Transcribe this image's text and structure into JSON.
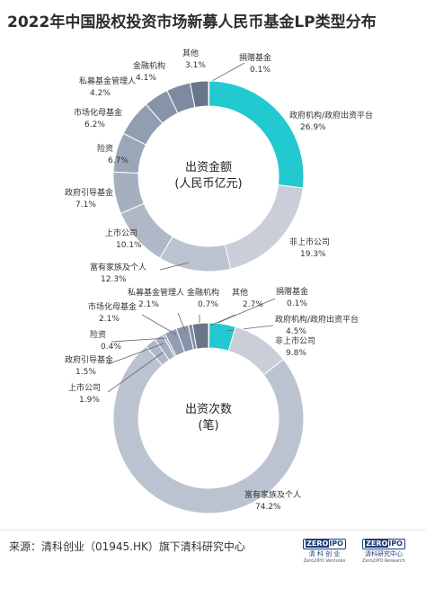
{
  "title": "2022年中国股权投资市场新募人民币基金LP类型分布",
  "source": "来源：清科创业（01945.HK）旗下清科研究中心",
  "logos": [
    {
      "mark_a": "ZERO",
      "mark_b": "IPO",
      "cn": "清 科 创 业",
      "en": "Zero2IPO Ventures"
    },
    {
      "mark_a": "ZERO",
      "mark_b": "IPO",
      "cn": "清科研究中心",
      "en": "Zero2IPO Research"
    }
  ],
  "colors": {
    "highlight": "#22c9d0",
    "slate": [
      "#69768a",
      "#738096",
      "#7d8aa0",
      "#8793a9",
      "#919db1",
      "#9ba6b9",
      "#a5afc0",
      "#b0b8c7",
      "#bcc3d0",
      "#c9ced8"
    ]
  },
  "chart_data": [
    {
      "type": "pie",
      "donut": true,
      "center_label": [
        "出资金额",
        "(人民币亿元)"
      ],
      "start_angle_deg": 0,
      "slices": [
        {
          "label": "捐赠基金",
          "value_text": "0.1%",
          "value": 0.1,
          "color": "#22c9d0"
        },
        {
          "label": "政府机构/政府出资平台",
          "value_text": "26.9%",
          "value": 26.9,
          "color": "#22c9d0"
        },
        {
          "label": "非上市公司",
          "value_text": "19.3%",
          "value": 19.3,
          "color": "#c9ced8"
        },
        {
          "label": "富有家族及个人",
          "value_text": "12.3%",
          "value": 12.3,
          "color": "#bcc3d0"
        },
        {
          "label": "上市公司",
          "value_text": "10.1%",
          "value": 10.1,
          "color": "#b0b8c7"
        },
        {
          "label": "政府引导基金",
          "value_text": "7.1%",
          "value": 7.1,
          "color": "#a5afc0"
        },
        {
          "label": "险资",
          "value_text": "6.7%",
          "value": 6.7,
          "color": "#9ba6b9"
        },
        {
          "label": "市场化母基金",
          "value_text": "6.2%",
          "value": 6.2,
          "color": "#919db1"
        },
        {
          "label": "私募基金管理人",
          "value_text": "4.2%",
          "value": 4.2,
          "color": "#8793a9"
        },
        {
          "label": "金融机构",
          "value_text": "4.1%",
          "value": 4.1,
          "color": "#7d8aa0"
        },
        {
          "label": "其他",
          "value_text": "3.1%",
          "value": 3.1,
          "color": "#69768a"
        }
      ]
    },
    {
      "type": "pie",
      "donut": true,
      "center_label": [
        "出资次数",
        "(笔)"
      ],
      "start_angle_deg": 0,
      "slices": [
        {
          "label": "捐赠基金",
          "value_text": "0.1%",
          "value": 0.1,
          "color": "#22c9d0"
        },
        {
          "label": "政府机构/政府出资平台",
          "value_text": "4.5%",
          "value": 4.5,
          "color": "#22c9d0"
        },
        {
          "label": "非上市公司",
          "value_text": "9.8%",
          "value": 9.8,
          "color": "#c9ced8"
        },
        {
          "label": "富有家族及个人",
          "value_text": "74.2%",
          "value": 74.2,
          "color": "#bcc3d0"
        },
        {
          "label": "上市公司",
          "value_text": "1.9%",
          "value": 1.9,
          "color": "#b0b8c7"
        },
        {
          "label": "政府引导基金",
          "value_text": "1.5%",
          "value": 1.5,
          "color": "#a5afc0"
        },
        {
          "label": "险资",
          "value_text": "0.4%",
          "value": 0.4,
          "color": "#9ba6b9"
        },
        {
          "label": "市场化母基金",
          "value_text": "2.1%",
          "value": 2.1,
          "color": "#919db1"
        },
        {
          "label": "私募基金管理人",
          "value_text": "2.1%",
          "value": 2.1,
          "color": "#8793a9"
        },
        {
          "label": "金融机构",
          "value_text": "0.7%",
          "value": 0.7,
          "color": "#7d8aa0"
        },
        {
          "label": "其他",
          "value_text": "2.7%",
          "value": 2.7,
          "color": "#69768a"
        }
      ]
    }
  ]
}
